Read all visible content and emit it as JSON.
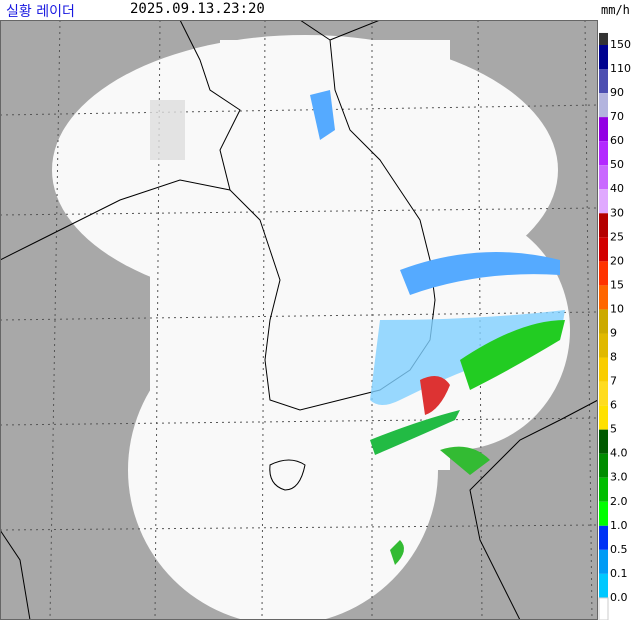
{
  "header": {
    "title": "실황 레이더",
    "time": "2025.09.13.23:20",
    "unit": "mm/h"
  },
  "legend": [
    {
      "label": "150",
      "color": "#333333"
    },
    {
      "label": "110",
      "color": "#000390"
    },
    {
      "label": "90",
      "color": "#4c4eb1"
    },
    {
      "label": "70",
      "color": "#b3b4de"
    },
    {
      "label": "60",
      "color": "#9300e4"
    },
    {
      "label": "50",
      "color": "#b329ff"
    },
    {
      "label": "40",
      "color": "#c969ff"
    },
    {
      "label": "30",
      "color": "#e0a9ff"
    },
    {
      "label": "25",
      "color": "#b40000"
    },
    {
      "label": "20",
      "color": "#d20000"
    },
    {
      "label": "15",
      "color": "#ff3300"
    },
    {
      "label": "10",
      "color": "#ff6600"
    },
    {
      "label": "9",
      "color": "#ccaa00"
    },
    {
      "label": "8",
      "color": "#e0b900"
    },
    {
      "label": "7",
      "color": "#f9cd00"
    },
    {
      "label": "6",
      "color": "#ffdc1f"
    },
    {
      "label": "5",
      "color": "#ffe100"
    },
    {
      "label": "4.0",
      "color": "#005a00"
    },
    {
      "label": "3.0",
      "color": "#008c00"
    },
    {
      "label": "2.0",
      "color": "#00be00"
    },
    {
      "label": "1.0",
      "color": "#00ff00"
    },
    {
      "label": "0.5",
      "color": "#0033f5"
    },
    {
      "label": "0.1",
      "color": "#009bf5"
    },
    {
      "label": "0.0",
      "color": "#00c8ff"
    }
  ]
}
